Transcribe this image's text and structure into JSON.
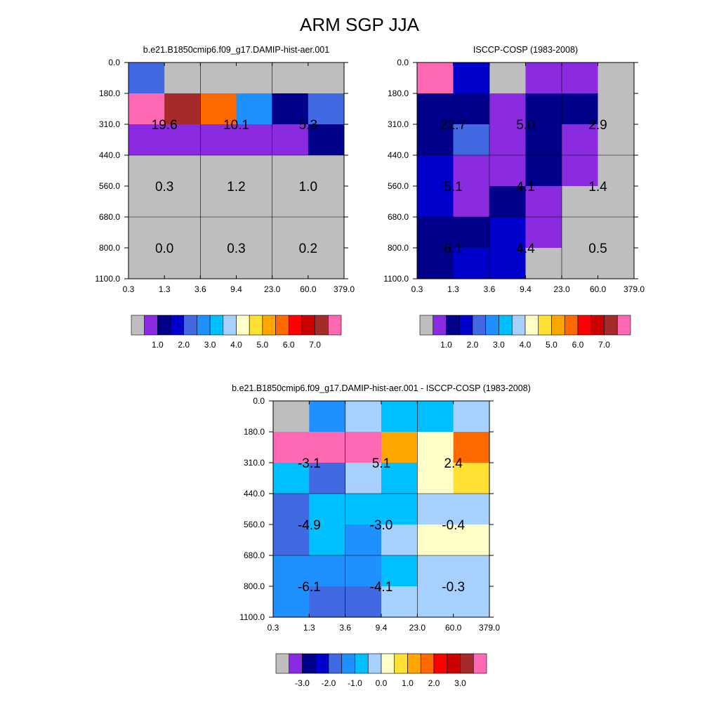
{
  "title": "ARM SGP JJA",
  "palette": {
    "c0": "#bebebe",
    "c1": "#8a2be2",
    "c2": "#00008b",
    "c3": "#0000cd",
    "c4": "#4169e1",
    "c5": "#1e90ff",
    "c6": "#00bfff",
    "c7": "#a6d1ff",
    "c8": "#ffffc8",
    "c9": "#ffe033",
    "c10": "#ffa500",
    "c11": "#ff6a00",
    "c12": "#ff0000",
    "c13": "#cd0000",
    "c14": "#a52a2a",
    "c15": "#ff69b4"
  },
  "chart_data": [
    {
      "type": "heatmap",
      "title": "b.e21.B1850cmip6.f09_g17.DAMIP-hist-aer.001",
      "x_ticks": [
        "0.3",
        "1.3",
        "3.6",
        "9.4",
        "23.0",
        "60.0",
        "379.0"
      ],
      "y_ticks": [
        "0.0",
        "180.0",
        "310.0",
        "440.0",
        "560.0",
        "680.0",
        "800.0",
        "1100.0"
      ],
      "cells": [
        [
          "c4",
          "c0",
          "c0",
          "c0",
          "c0",
          "c0"
        ],
        [
          "c15",
          "c14",
          "c11",
          "c5",
          "c2",
          "c4"
        ],
        [
          "c1",
          "c1",
          "c1",
          "c1",
          "c1",
          "c2"
        ],
        [
          "c0",
          "c0",
          "c0",
          "c0",
          "c0",
          "c0"
        ],
        [
          "c0",
          "c0",
          "c0",
          "c0",
          "c0",
          "c0"
        ],
        [
          "c0",
          "c0",
          "c0",
          "c0",
          "c0",
          "c0"
        ],
        [
          "c0",
          "c0",
          "c0",
          "c0",
          "c0",
          "c0"
        ]
      ],
      "group_labels": [
        {
          "row": 0,
          "col": 0,
          "value": "19.6"
        },
        {
          "row": 0,
          "col": 1,
          "value": "10.1"
        },
        {
          "row": 0,
          "col": 2,
          "value": "5.3"
        },
        {
          "row": 1,
          "col": 0,
          "value": "0.3"
        },
        {
          "row": 1,
          "col": 1,
          "value": "1.2"
        },
        {
          "row": 1,
          "col": 2,
          "value": "1.0"
        },
        {
          "row": 2,
          "col": 0,
          "value": "0.0"
        },
        {
          "row": 2,
          "col": 1,
          "value": "0.3"
        },
        {
          "row": 2,
          "col": 2,
          "value": "0.2"
        }
      ],
      "colorbar": {
        "colors": [
          "c0",
          "c1",
          "c2",
          "c3",
          "c4",
          "c5",
          "c6",
          "c7",
          "c8",
          "c9",
          "c10",
          "c11",
          "c12",
          "c13",
          "c14",
          "c15"
        ],
        "labels": [
          "1.0",
          "2.0",
          "3.0",
          "4.0",
          "5.0",
          "6.0",
          "7.0"
        ]
      }
    },
    {
      "type": "heatmap",
      "title": "ISCCP-COSP (1983-2008)",
      "x_ticks": [
        "0.3",
        "1.3",
        "3.6",
        "9.4",
        "23.0",
        "60.0",
        "379.0"
      ],
      "y_ticks": [
        "0.0",
        "180.0",
        "310.0",
        "440.0",
        "560.0",
        "680.0",
        "800.0",
        "1100.0"
      ],
      "cells": [
        [
          "c15",
          "c3",
          "c0",
          "c1",
          "c1",
          "c0"
        ],
        [
          "c2",
          "c2",
          "c1",
          "c2",
          "c2",
          "c0"
        ],
        [
          "c2",
          "c4",
          "c1",
          "c2",
          "c1",
          "c0"
        ],
        [
          "c3",
          "c1",
          "c1",
          "c2",
          "c1",
          "c0"
        ],
        [
          "c3",
          "c1",
          "c2",
          "c1",
          "c0",
          "c0"
        ],
        [
          "c2",
          "c2",
          "c3",
          "c1",
          "c0",
          "c0"
        ],
        [
          "c2",
          "c3",
          "c3",
          "c0",
          "c0",
          "c0"
        ]
      ],
      "group_labels": [
        {
          "row": 0,
          "col": 0,
          "value": "22.7"
        },
        {
          "row": 0,
          "col": 1,
          "value": "5.0"
        },
        {
          "row": 0,
          "col": 2,
          "value": "2.9"
        },
        {
          "row": 1,
          "col": 0,
          "value": "5.1"
        },
        {
          "row": 1,
          "col": 1,
          "value": "4.1"
        },
        {
          "row": 1,
          "col": 2,
          "value": "1.4"
        },
        {
          "row": 2,
          "col": 0,
          "value": "6.1"
        },
        {
          "row": 2,
          "col": 1,
          "value": "4.4"
        },
        {
          "row": 2,
          "col": 2,
          "value": "0.5"
        }
      ],
      "colorbar": {
        "colors": [
          "c0",
          "c1",
          "c2",
          "c3",
          "c4",
          "c5",
          "c6",
          "c7",
          "c8",
          "c9",
          "c10",
          "c11",
          "c12",
          "c13",
          "c14",
          "c15"
        ],
        "labels": [
          "1.0",
          "2.0",
          "3.0",
          "4.0",
          "5.0",
          "6.0",
          "7.0"
        ]
      }
    },
    {
      "type": "heatmap",
      "title": "b.e21.B1850cmip6.f09_g17.DAMIP-hist-aer.001 - ISCCP-COSP (1983-2008)",
      "x_ticks": [
        "0.3",
        "1.3",
        "3.6",
        "9.4",
        "23.0",
        "60.0",
        "379.0"
      ],
      "y_ticks": [
        "0.0",
        "180.0",
        "310.0",
        "440.0",
        "560.0",
        "680.0",
        "800.0",
        "1100.0"
      ],
      "cells": [
        [
          "c0",
          "c5",
          "c7",
          "c6",
          "c6",
          "c7"
        ],
        [
          "c15",
          "c15",
          "c15",
          "c10",
          "c8",
          "c11"
        ],
        [
          "c6",
          "c4",
          "c7",
          "c6",
          "c8",
          "c9"
        ],
        [
          "c4",
          "c6",
          "c6",
          "c6",
          "c7",
          "c7"
        ],
        [
          "c4",
          "c6",
          "c5",
          "c7",
          "c8",
          "c8"
        ],
        [
          "c5",
          "c5",
          "c5",
          "c6",
          "c7",
          "c7"
        ],
        [
          "c5",
          "c4",
          "c4",
          "c7",
          "c7",
          "c7"
        ]
      ],
      "group_labels": [
        {
          "row": 0,
          "col": 0,
          "value": "-3.1"
        },
        {
          "row": 0,
          "col": 1,
          "value": "5.1"
        },
        {
          "row": 0,
          "col": 2,
          "value": "2.4"
        },
        {
          "row": 1,
          "col": 0,
          "value": "-4.9"
        },
        {
          "row": 1,
          "col": 1,
          "value": "-3.0"
        },
        {
          "row": 1,
          "col": 2,
          "value": "-0.4"
        },
        {
          "row": 2,
          "col": 0,
          "value": "-6.1"
        },
        {
          "row": 2,
          "col": 1,
          "value": "-4.1"
        },
        {
          "row": 2,
          "col": 2,
          "value": "-0.3"
        }
      ],
      "colorbar": {
        "colors": [
          "c0",
          "c1",
          "c2",
          "c3",
          "c4",
          "c5",
          "c6",
          "c7",
          "c8",
          "c9",
          "c10",
          "c11",
          "c12",
          "c13",
          "c14",
          "c15"
        ],
        "labels": [
          "-3.0",
          "-2.0",
          "-1.0",
          "0.0",
          "1.0",
          "2.0",
          "3.0"
        ]
      }
    }
  ]
}
